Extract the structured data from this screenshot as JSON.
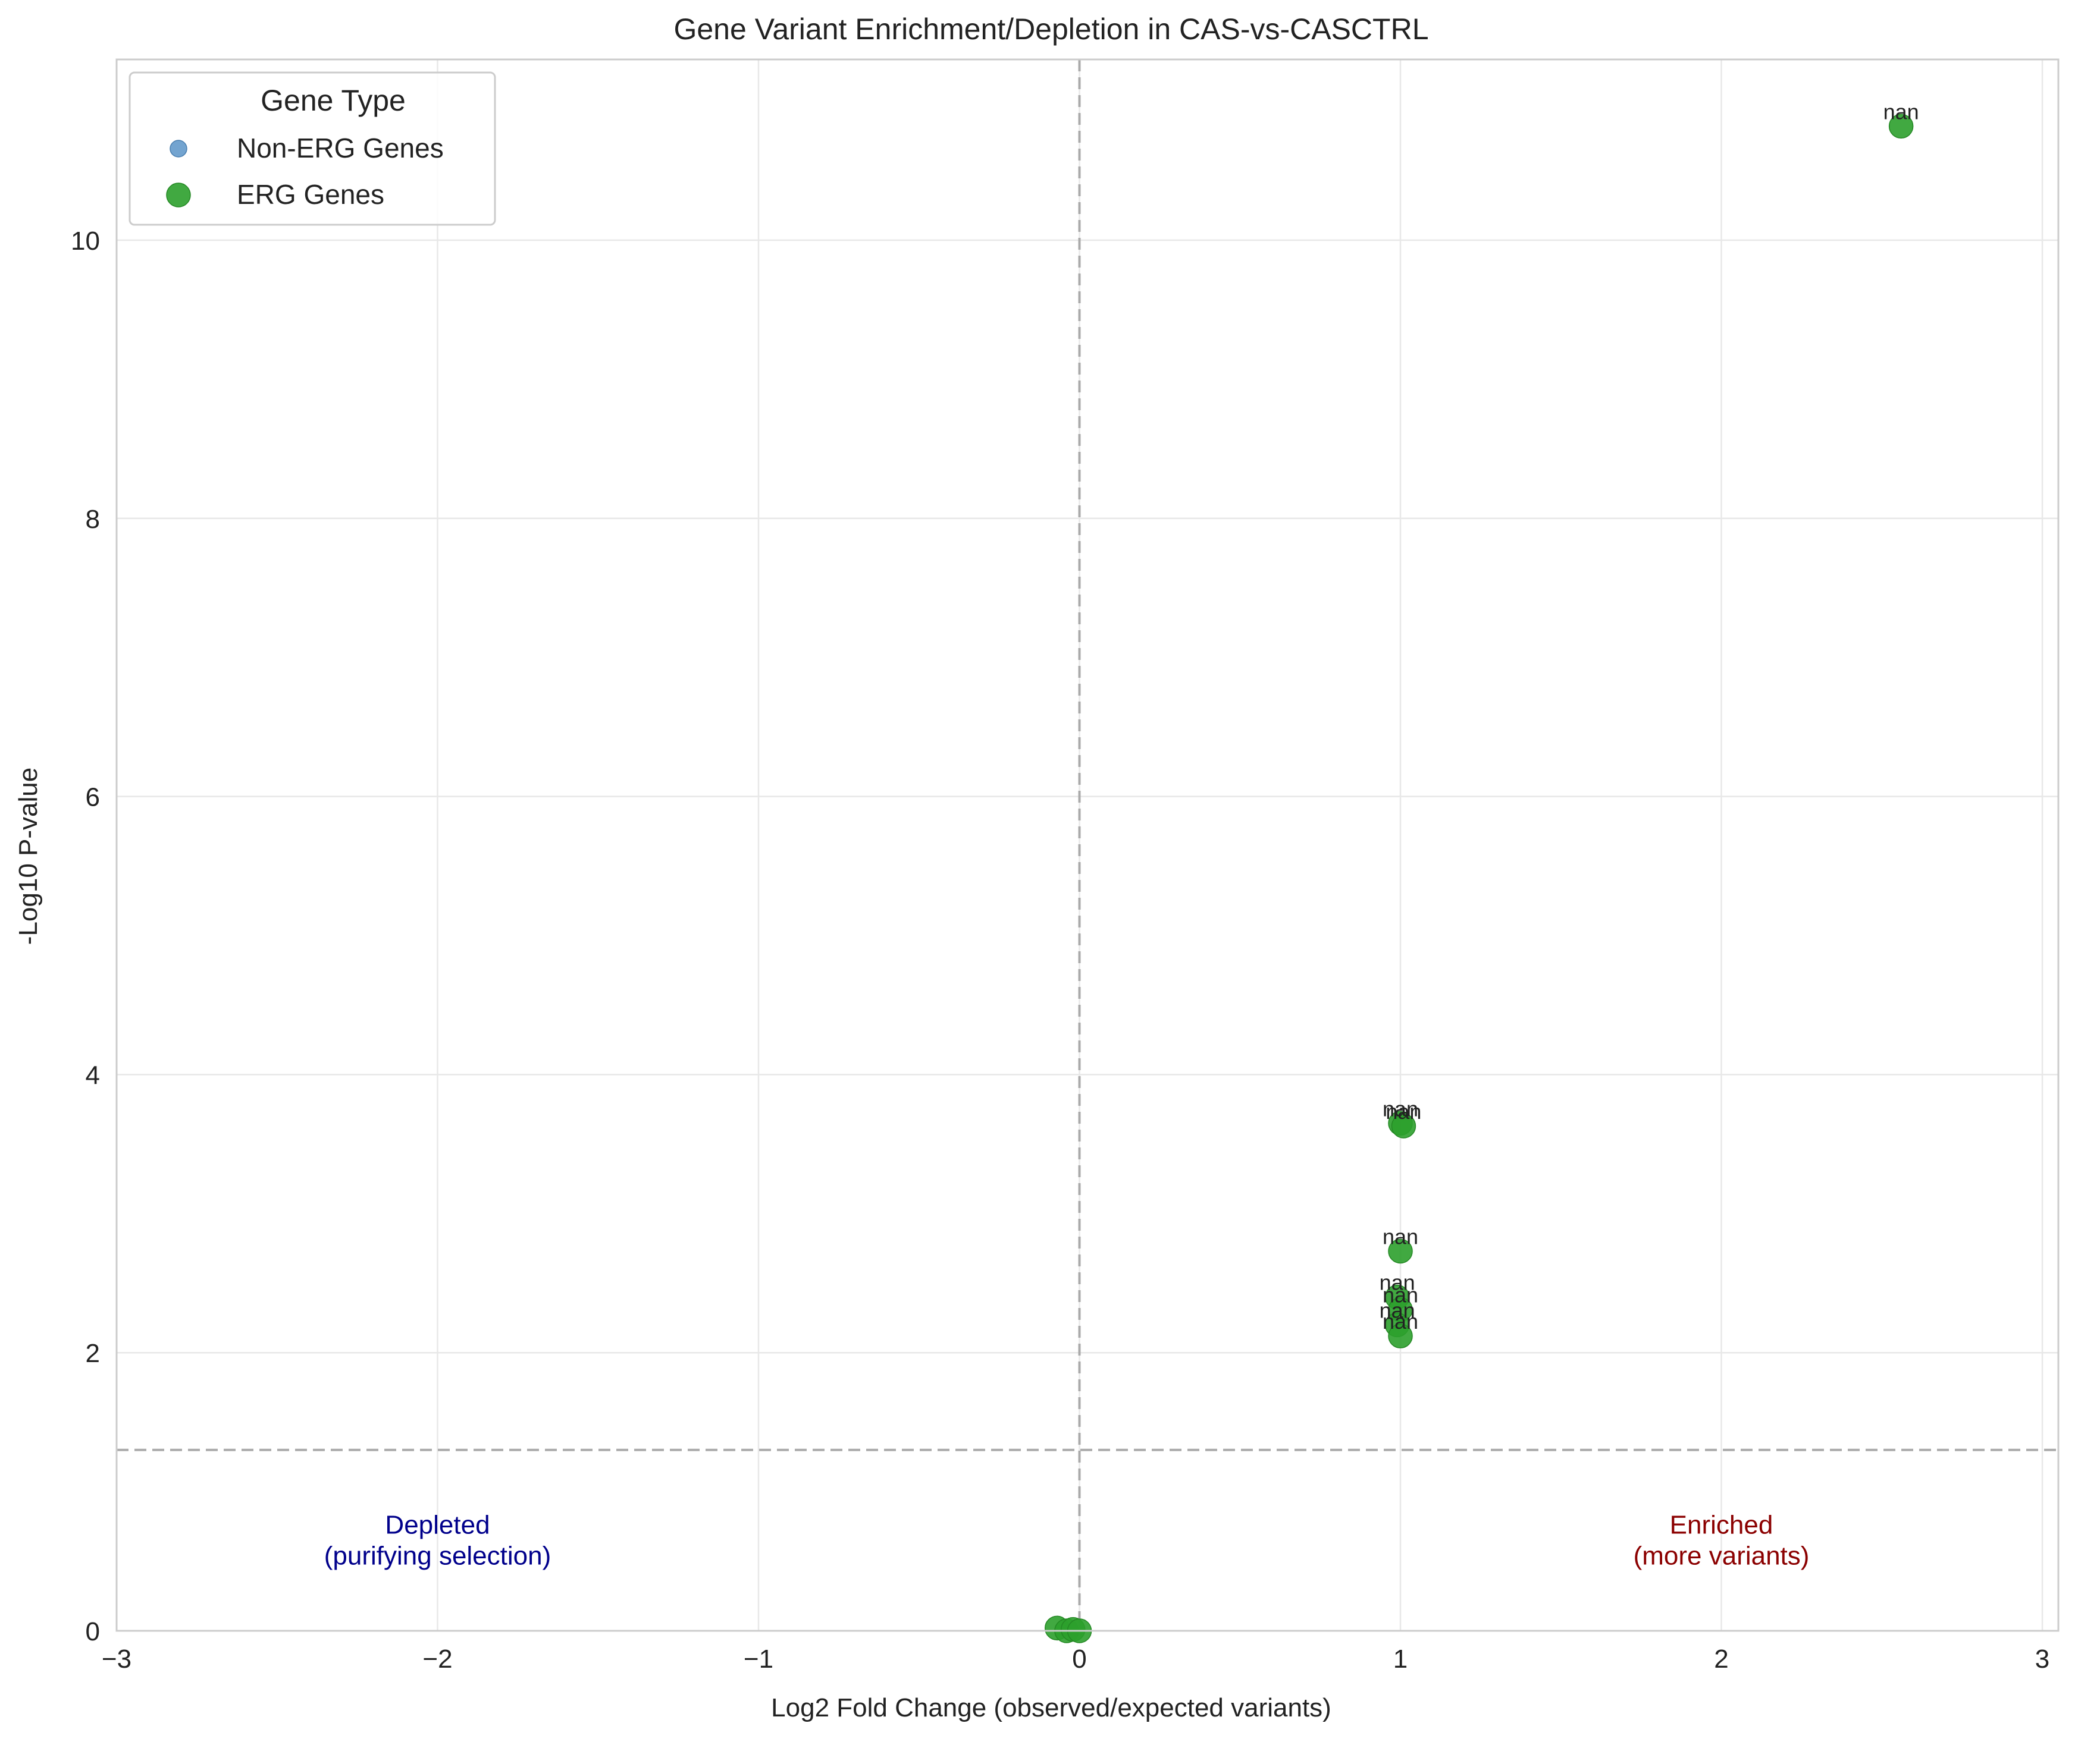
{
  "chart_data": {
    "type": "scatter",
    "title": "Gene Variant Enrichment/Depletion in CAS-vs-CASCTRL",
    "xlabel": "Log2 Fold Change (observed/expected variants)",
    "ylabel": "-Log10 P-value",
    "xlim": [
      -3,
      3.05
    ],
    "ylim": [
      0,
      11.3
    ],
    "xticks": [
      -3,
      -2,
      -1,
      0,
      1,
      2,
      3
    ],
    "xtick_labels": [
      "−3",
      "−2",
      "−1",
      "0",
      "1",
      "2",
      "3"
    ],
    "yticks": [
      0,
      2,
      4,
      6,
      8,
      10
    ],
    "ytick_labels": [
      "0",
      "2",
      "4",
      "6",
      "8",
      "10"
    ],
    "grid": true,
    "legend": {
      "title": "Gene Type",
      "position": "top-left",
      "entries": [
        {
          "label": "Non-ERG Genes",
          "color": "#5a94c8"
        },
        {
          "label": "ERG Genes",
          "color": "#2ca02c"
        }
      ]
    },
    "reference_lines": {
      "vertical_x": 0,
      "horizontal_y": 1.301
    },
    "series": [
      {
        "name": "Non-ERG Genes",
        "color": "#5a94c8",
        "points": []
      },
      {
        "name": "ERG Genes",
        "color": "#2ca02c",
        "points": [
          {
            "x": 2.56,
            "y": 10.82,
            "label": "nan"
          },
          {
            "x": 1.0,
            "y": 3.65,
            "label": "nan"
          },
          {
            "x": 1.01,
            "y": 3.63,
            "label": "nan"
          },
          {
            "x": 1.0,
            "y": 2.73,
            "label": "nan"
          },
          {
            "x": 0.99,
            "y": 2.4,
            "label": "nan"
          },
          {
            "x": 1.0,
            "y": 2.31,
            "label": "nan"
          },
          {
            "x": 0.99,
            "y": 2.2,
            "label": "nan"
          },
          {
            "x": 1.0,
            "y": 2.12,
            "label": "nan"
          },
          {
            "x": -0.07,
            "y": 0.02
          },
          {
            "x": -0.04,
            "y": 0.0
          },
          {
            "x": -0.02,
            "y": 0.01
          },
          {
            "x": 0.0,
            "y": 0.0
          }
        ]
      }
    ],
    "annotations": [
      {
        "lines": [
          "Depleted",
          "(purifying selection)"
        ],
        "x": -2.0,
        "y": 0.7,
        "color": "#00008b"
      },
      {
        "lines": [
          "Enriched",
          "(more variants)"
        ],
        "x": 2.0,
        "y": 0.7,
        "color": "#8b0000"
      }
    ]
  }
}
